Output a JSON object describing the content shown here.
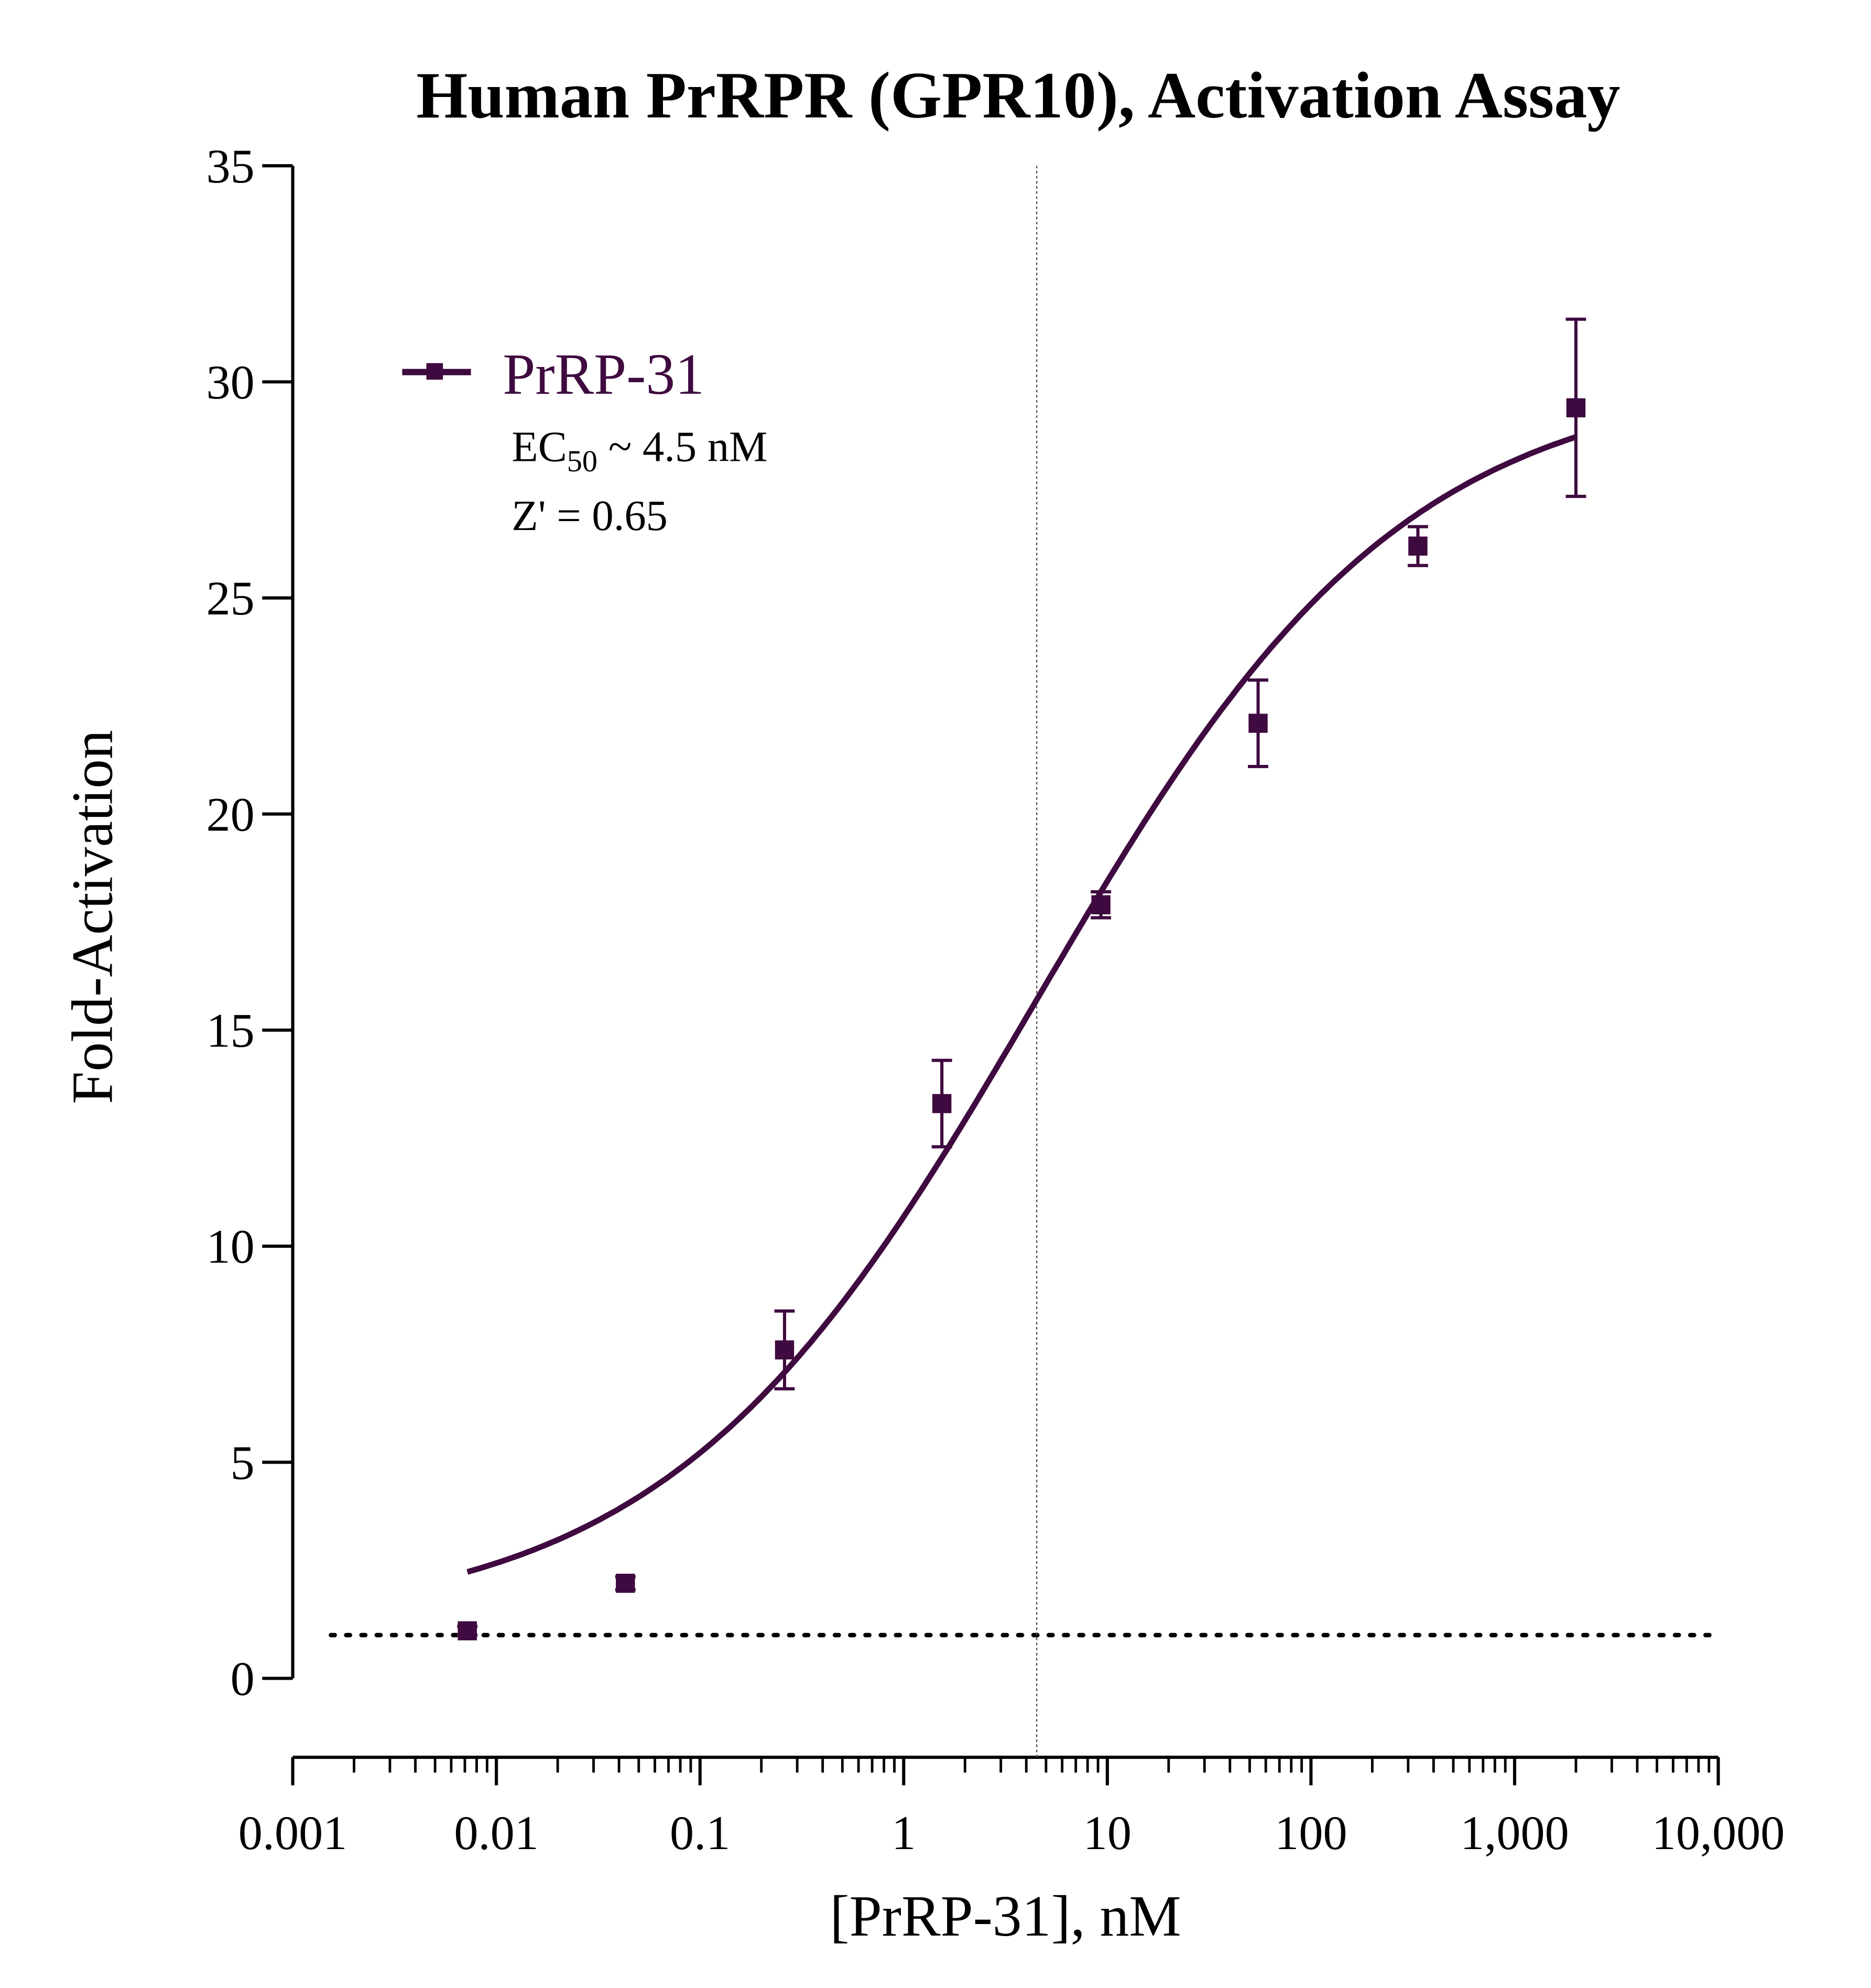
{
  "chart_data": {
    "type": "scatter",
    "title": "Human PrRPR (GPR10), Activation Assay",
    "xlabel": "[PrRP-31], nM",
    "ylabel": "Fold-Activation",
    "x_scale": "log",
    "xlim": [
      0.001,
      10000
    ],
    "ylim": [
      0,
      35
    ],
    "x_ticks": [
      "0.001",
      "0.01",
      "0.1",
      "1",
      "10",
      "100",
      "1,000",
      "10,000"
    ],
    "x_tick_values": [
      0.001,
      0.01,
      0.1,
      1,
      10,
      100,
      1000,
      10000
    ],
    "y_ticks": [
      "0",
      "5",
      "10",
      "15",
      "20",
      "25",
      "30",
      "35"
    ],
    "y_tick_values": [
      0,
      5,
      10,
      15,
      20,
      25,
      30,
      35
    ],
    "grid": false,
    "legend_placement": "top-left",
    "color": "#3f0a3f",
    "series": [
      {
        "name": "PrRP-31",
        "marker": "square",
        "x": [
          0.0072,
          0.043,
          0.26,
          1.54,
          9.3,
          55,
          335,
          2000
        ],
        "y": [
          1.1,
          2.2,
          7.6,
          13.3,
          17.9,
          22.1,
          26.2,
          29.4
        ],
        "error": [
          0.1,
          0.15,
          0.9,
          1.0,
          0.3,
          1.0,
          0.45,
          2.05
        ],
        "fit": {
          "model": "4PL",
          "bottom": 1.2,
          "top": 30.2,
          "ec50": 4.5,
          "hill": 0.48,
          "x_range": [
            0.0072,
            2000
          ]
        }
      }
    ],
    "annotations": {
      "ec50_prefix": "EC",
      "ec50_sub": "50",
      "ec50_rest": " ~ 4.5 nM",
      "zprime": "Z' = 0.65"
    },
    "reference_lines": {
      "baseline_y": 1,
      "ec50_x": 4.5
    }
  }
}
